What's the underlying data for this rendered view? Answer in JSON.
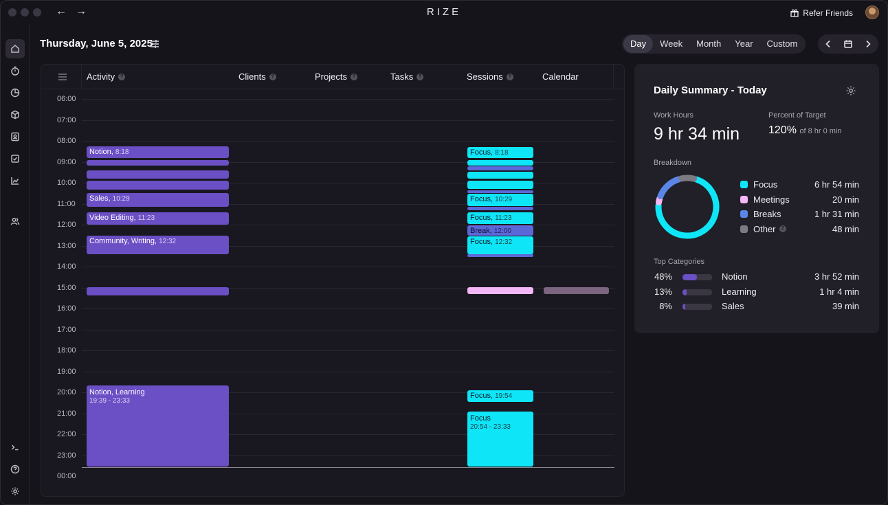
{
  "app": {
    "title": "RIZE",
    "refer_label": "Refer Friends"
  },
  "header": {
    "date": "Thursday, June 5, 2025"
  },
  "view_tabs": [
    "Day",
    "Week",
    "Month",
    "Year",
    "Custom"
  ],
  "active_tab": "Day",
  "timeline": {
    "columns": [
      {
        "label": "Activity",
        "help": true
      },
      {
        "label": "Clients",
        "help": true
      },
      {
        "label": "Projects",
        "help": true
      },
      {
        "label": "Tasks",
        "help": true
      },
      {
        "label": "Sessions",
        "help": true
      },
      {
        "label": "Calendar",
        "help": false
      }
    ],
    "hours": [
      "06:00",
      "07:00",
      "08:00",
      "09:00",
      "10:00",
      "11:00",
      "12:00",
      "13:00",
      "14:00",
      "15:00",
      "16:00",
      "17:00",
      "18:00",
      "19:00",
      "20:00",
      "21:00",
      "22:00",
      "23:00",
      "00:00"
    ],
    "activity_blocks": [
      {
        "name": "Notion",
        "time": "8:18"
      },
      {
        "name": "Sales",
        "time": "10:29"
      },
      {
        "name": "Video Editing",
        "time": "11:23"
      },
      {
        "name": "Community, Writing",
        "time": "12:32"
      },
      {
        "name": "Notion, Learning",
        "time": "19:39 - 23:33"
      }
    ],
    "session_blocks": [
      {
        "name": "Focus",
        "time": "8:18"
      },
      {
        "name": "Focus",
        "time": "10:29"
      },
      {
        "name": "Focus",
        "time": "11:23"
      },
      {
        "name": "Break",
        "time": "12:00"
      },
      {
        "name": "Focus",
        "time": "12:32"
      },
      {
        "name": "Focus",
        "time": "19:54"
      },
      {
        "name": "Focus",
        "time": "20:54 - 23:33"
      }
    ]
  },
  "summary": {
    "title": "Daily Summary - Today",
    "work_hours_label": "Work Hours",
    "work_hours": "9 hr 34 min",
    "percent_label": "Percent of Target",
    "percent": "120%",
    "percent_of": "of 8 hr 0 min",
    "breakdown_label": "Breakdown",
    "breakdown": [
      {
        "name": "Focus",
        "value": "6 hr 54 min",
        "color": "#0ee6f8"
      },
      {
        "name": "Meetings",
        "value": "20 min",
        "color": "#f4b6f4"
      },
      {
        "name": "Breaks",
        "value": "1 hr 31 min",
        "color": "#5b86e8"
      },
      {
        "name": "Other",
        "value": "48 min",
        "color": "#7d7b82"
      }
    ],
    "top_categories_label": "Top Categories",
    "top_categories": [
      {
        "pct": "48%",
        "fraction": 0.48,
        "name": "Notion",
        "value": "3 hr 52 min"
      },
      {
        "pct": "13%",
        "fraction": 0.13,
        "name": "Learning",
        "value": "1 hr 4 min"
      },
      {
        "pct": "8%",
        "fraction": 0.08,
        "name": "Sales",
        "value": "39 min"
      }
    ]
  }
}
